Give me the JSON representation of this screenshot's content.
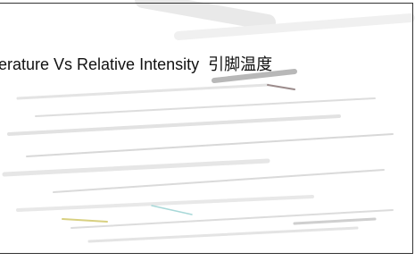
{
  "title": "erature Vs Relative Intensity  引脚温度"
}
